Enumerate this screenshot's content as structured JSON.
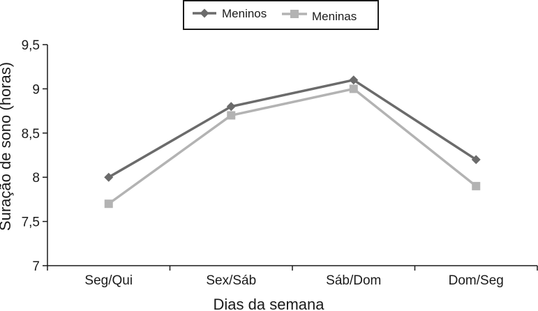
{
  "chart_data": {
    "type": "line",
    "title": "",
    "xlabel": "Dias da semana",
    "ylabel": "Suração de sono (horas)",
    "categories": [
      "Seg/Qui",
      "Sex/Sáb",
      "Sáb/Dom",
      "Dom/Seg"
    ],
    "ylim": [
      7,
      9.5
    ],
    "yticks": [
      7,
      7.5,
      8,
      8.5,
      9,
      9.5
    ],
    "ytick_labels": [
      "7",
      "7,5",
      "8",
      "8,5",
      "9",
      "9,5"
    ],
    "grid": false,
    "legend_position": "top-center",
    "series": [
      {
        "name": "Meninos",
        "values": [
          8.0,
          8.8,
          9.1,
          8.2
        ],
        "color": "#6b6b6b",
        "marker": "diamond"
      },
      {
        "name": "Meninas",
        "values": [
          7.7,
          8.7,
          9.0,
          7.9
        ],
        "color": "#b3b3b3",
        "marker": "square"
      }
    ]
  }
}
